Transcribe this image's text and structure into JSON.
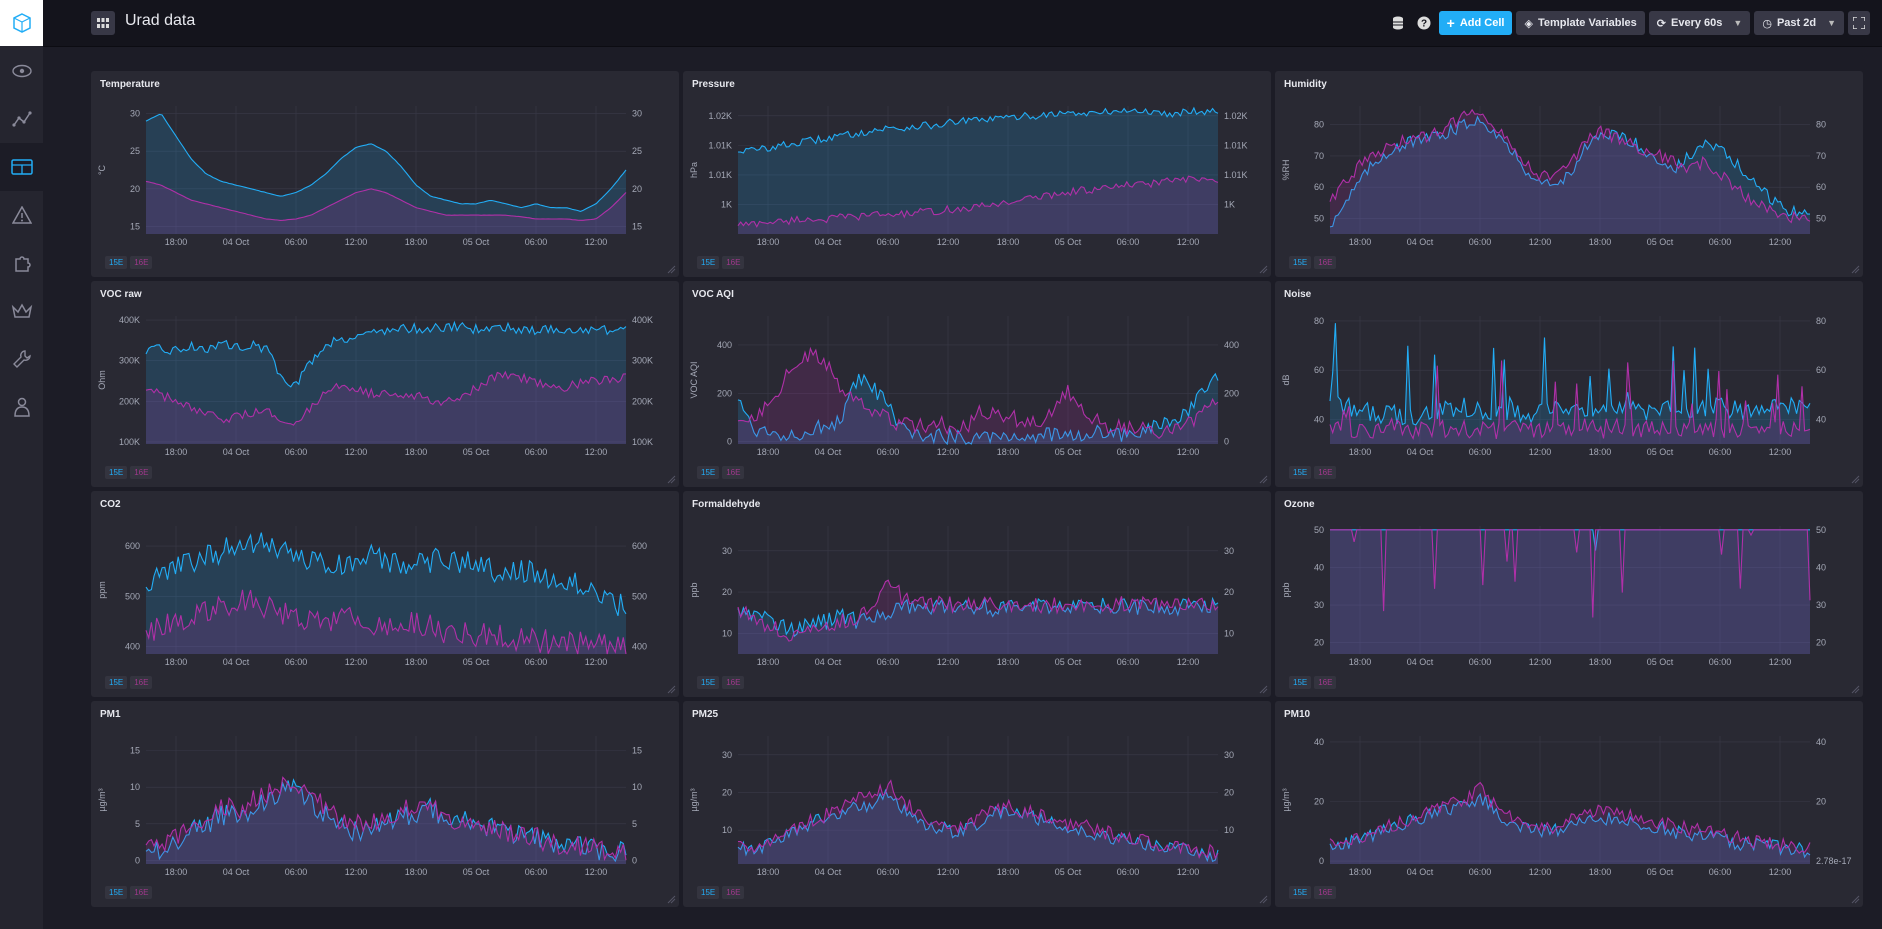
{
  "app": {
    "dashboard_title": "Urad data"
  },
  "sidebar": {
    "items": [
      {
        "icon": "logo-icon"
      },
      {
        "icon": "eye-icon"
      },
      {
        "icon": "graph-icon"
      },
      {
        "icon": "dashboard-icon"
      },
      {
        "icon": "alert-icon"
      },
      {
        "icon": "puzzle-icon"
      },
      {
        "icon": "crown-icon"
      },
      {
        "icon": "wrench-icon"
      },
      {
        "icon": "user-icon"
      }
    ]
  },
  "toolbar": {
    "add_cell": "Add Cell",
    "template_variables": "Template Variables",
    "refresh": "Every 60s",
    "time_range": "Past 2d"
  },
  "colors": {
    "series1": "#22adf6",
    "series2": "#b030a8",
    "grid": "#3a3a48",
    "panel": "#292933",
    "background": "#1c1c26"
  },
  "x_ticks": [
    "18:00",
    "04 Oct",
    "06:00",
    "12:00",
    "18:00",
    "05 Oct",
    "06:00",
    "12:00"
  ],
  "legend": {
    "s1": "15E",
    "s2": "16E"
  },
  "cells": [
    {
      "title": "Temperature",
      "ylabel": "°C",
      "ylim": [
        14,
        31
      ],
      "yticks": [
        "30",
        "25",
        "20",
        "15"
      ],
      "ytickvals": [
        30,
        25,
        20,
        15
      ],
      "rticks": [
        "30",
        "25",
        "20",
        "15"
      ],
      "kind": "smooth",
      "series1": [
        29,
        30,
        27,
        24,
        22,
        21,
        20.5,
        20,
        19.5,
        19,
        19.5,
        20.5,
        22,
        24,
        25.5,
        26,
        25,
        23,
        20.5,
        19,
        18.5,
        18,
        18,
        18.5,
        18,
        17.5,
        18,
        17.5,
        17.5,
        17,
        18,
        20,
        22.5
      ],
      "series2": [
        21,
        20.5,
        19.5,
        18.5,
        18,
        17.5,
        17,
        16.5,
        16,
        15.8,
        16,
        16.5,
        17.5,
        18.5,
        19.5,
        20,
        19.5,
        18.5,
        17.5,
        17,
        16.5,
        16.5,
        16.5,
        16.5,
        16.5,
        16.3,
        16,
        16,
        16,
        15.8,
        16,
        17.5,
        19.5
      ]
    },
    {
      "title": "Pressure",
      "ylabel": "hPa",
      "ylim": [
        997,
        1023
      ],
      "yticks": [
        "1.02K",
        "1.01K",
        "1.01K",
        "1K"
      ],
      "ytickvals": [
        1021,
        1015,
        1009,
        1003
      ],
      "rticks": [
        "1.02K",
        "1.01K",
        "1.01K",
        "1K"
      ],
      "kind": "smooth",
      "series1": [
        1014,
        1014,
        1014.5,
        1015,
        1015.5,
        1016,
        1016.5,
        1017,
        1017.5,
        1018,
        1018.5,
        1018.5,
        1019,
        1019,
        1019.5,
        1020,
        1020,
        1020.5,
        1020.5,
        1021,
        1021,
        1021.5,
        1021.5,
        1021.5,
        1021.5,
        1022,
        1022,
        1022,
        1021.5,
        1021.5,
        1022,
        1022,
        1022
      ],
      "series2": [
        999,
        999,
        999.5,
        999.5,
        1000,
        1000,
        1000,
        1000.5,
        1000.5,
        1001,
        1001,
        1001,
        1001.5,
        1001.5,
        1002,
        1002,
        1002.5,
        1003,
        1003.5,
        1004,
        1004.5,
        1005,
        1005.5,
        1006,
        1006,
        1006.5,
        1007,
        1007,
        1007.5,
        1008,
        1008,
        1008,
        1008
      ]
    },
    {
      "title": "Humidity",
      "ylabel": "%RH",
      "ylim": [
        45,
        86
      ],
      "yticks": [
        "80",
        "70",
        "60",
        "50"
      ],
      "ytickvals": [
        80,
        70,
        60,
        50
      ],
      "rticks": [
        "80",
        "70",
        "60",
        "50"
      ],
      "kind": "noisy",
      "amp": 2,
      "series1": [
        48,
        55,
        62,
        68,
        72,
        74,
        75,
        76,
        78,
        80,
        82,
        78,
        72,
        66,
        62,
        60,
        65,
        72,
        76,
        77,
        75,
        72,
        68,
        66,
        70,
        74,
        72,
        68,
        62,
        58,
        54,
        52,
        51
      ],
      "series2": [
        56,
        62,
        67,
        70,
        73,
        75,
        76,
        77,
        80,
        83,
        85,
        80,
        74,
        68,
        64,
        63,
        68,
        74,
        78,
        76,
        74,
        72,
        70,
        68,
        66,
        68,
        64,
        60,
        56,
        54,
        52,
        50,
        49
      ]
    },
    {
      "title": "VOC raw",
      "ylabel": "Ohm",
      "ylim": [
        95000,
        410000
      ],
      "yticks": [
        "400K",
        "300K",
        "200K",
        "100K"
      ],
      "ytickvals": [
        400000,
        300000,
        200000,
        100000
      ],
      "rticks": [
        "400K",
        "300K",
        "200K",
        "100K"
      ],
      "kind": "noisy",
      "amp": 12000,
      "series1": [
        320000,
        330000,
        325000,
        335000,
        330000,
        340000,
        335000,
        340000,
        330000,
        260000,
        240000,
        300000,
        340000,
        355000,
        360000,
        370000,
        375000,
        378000,
        380000,
        380000,
        382000,
        383000,
        378000,
        380000,
        382000,
        378000,
        375000,
        378000,
        376000,
        375000,
        374000,
        376000,
        372000
      ],
      "series2": [
        230000,
        215000,
        200000,
        180000,
        165000,
        158000,
        160000,
        170000,
        175000,
        160000,
        150000,
        180000,
        220000,
        240000,
        235000,
        220000,
        215000,
        210000,
        215000,
        205000,
        200000,
        215000,
        230000,
        255000,
        265000,
        260000,
        250000,
        240000,
        235000,
        245000,
        250000,
        255000,
        258000
      ]
    },
    {
      "title": "VOC AQI",
      "ylabel": "VOC AQI",
      "ylim": [
        -10,
        520
      ],
      "yticks": [
        "400",
        "200",
        "0"
      ],
      "ytickvals": [
        400,
        200,
        0
      ],
      "rticks": [
        "400",
        "200",
        "0"
      ],
      "kind": "noisy",
      "amp": 35,
      "series1": [
        180,
        60,
        40,
        30,
        40,
        50,
        60,
        100,
        260,
        220,
        150,
        40,
        30,
        25,
        20,
        20,
        25,
        30,
        25,
        20,
        25,
        30,
        20,
        30,
        40,
        30,
        25,
        50,
        60,
        80,
        120,
        200,
        260
      ],
      "series2": [
        90,
        100,
        160,
        250,
        330,
        360,
        300,
        220,
        160,
        120,
        90,
        70,
        60,
        80,
        60,
        50,
        120,
        130,
        100,
        90,
        80,
        140,
        200,
        120,
        80,
        60,
        60,
        50,
        40,
        50,
        70,
        140,
        180
      ]
    },
    {
      "title": "Noise",
      "ylabel": "dB",
      "ylim": [
        30,
        82
      ],
      "yticks": [
        "80",
        "60",
        "40"
      ],
      "ytickvals": [
        80,
        60,
        40
      ],
      "rticks": [
        "80",
        "60",
        "40"
      ],
      "kind": "spiky",
      "amp": 8,
      "series1": [
        48,
        45,
        44,
        42,
        43,
        41,
        42,
        43,
        44,
        45,
        44,
        43,
        44,
        42,
        43,
        44,
        45,
        43,
        44,
        45,
        44,
        43,
        45,
        44,
        43,
        44,
        45,
        44,
        43,
        45,
        44,
        45,
        44
      ],
      "series2": [
        38,
        37,
        36,
        36,
        37,
        36,
        36,
        37,
        36,
        36,
        37,
        36,
        37,
        36,
        36,
        37,
        36,
        37,
        36,
        37,
        36,
        36,
        37,
        36,
        37,
        36,
        36,
        37,
        36,
        37,
        36,
        36,
        37
      ]
    },
    {
      "title": "CO2",
      "ylabel": "ppm",
      "ylim": [
        385,
        640
      ],
      "yticks": [
        "600",
        "500",
        "400"
      ],
      "ytickvals": [
        600,
        500,
        400
      ],
      "rticks": [
        "600",
        "500",
        "400"
      ],
      "kind": "noisy",
      "amp": 25,
      "series1": [
        520,
        540,
        560,
        570,
        580,
        590,
        600,
        610,
        600,
        590,
        580,
        570,
        560,
        560,
        570,
        580,
        570,
        560,
        560,
        570,
        580,
        570,
        560,
        550,
        560,
        550,
        545,
        540,
        530,
        520,
        500,
        490,
        480
      ],
      "series2": [
        430,
        440,
        450,
        460,
        470,
        480,
        490,
        500,
        480,
        470,
        460,
        450,
        450,
        455,
        460,
        450,
        440,
        440,
        445,
        440,
        430,
        430,
        425,
        420,
        420,
        415,
        410,
        410,
        410,
        405,
        405,
        400,
        400
      ]
    },
    {
      "title": "Formaldehyde",
      "ylabel": "ppb",
      "ylim": [
        5,
        36
      ],
      "yticks": [
        "30",
        "20",
        "10"
      ],
      "ytickvals": [
        30,
        20,
        10
      ],
      "rticks": [
        "30",
        "20",
        "10"
      ],
      "kind": "noisy",
      "amp": 2,
      "series1": [
        16,
        15,
        14,
        12,
        11,
        12,
        13,
        14,
        13,
        14,
        15,
        16,
        17,
        16,
        17,
        16,
        17,
        16,
        17,
        16,
        17,
        16,
        17,
        16,
        17,
        16,
        17,
        16,
        17,
        16,
        17,
        16,
        17
      ],
      "series2": [
        16,
        14,
        12,
        10,
        10,
        11,
        12,
        13,
        14,
        15,
        24,
        18,
        17,
        17,
        17,
        17,
        17,
        17,
        17,
        17,
        17,
        17,
        17,
        17,
        17,
        17,
        17,
        17,
        17,
        17,
        17,
        17,
        17
      ]
    },
    {
      "title": "Ozone",
      "ylabel": "ppb",
      "ylim": [
        17,
        51
      ],
      "yticks": [
        "50",
        "40",
        "30",
        "20"
      ],
      "ytickvals": [
        50,
        40,
        30,
        20
      ],
      "rticks": [
        "50",
        "40",
        "30",
        "20"
      ],
      "kind": "flat",
      "series1": [
        50,
        50,
        50,
        50,
        50,
        50,
        50,
        50,
        50,
        50,
        50,
        50,
        50,
        50,
        50,
        50,
        50,
        50,
        50,
        50,
        50,
        50,
        50,
        50,
        50,
        50,
        50,
        50,
        50,
        50,
        50,
        50,
        50
      ],
      "series2": [
        50,
        50,
        50,
        50,
        50,
        50,
        50,
        50,
        50,
        50,
        50,
        50,
        50,
        50,
        50,
        50,
        50,
        50,
        50,
        50,
        50,
        50,
        50,
        50,
        50,
        50,
        50,
        50,
        50,
        50,
        50,
        50,
        50
      ]
    },
    {
      "title": "PM1",
      "ylabel": "µg/m³",
      "ylim": [
        -0.5,
        17
      ],
      "yticks": [
        "15",
        "10",
        "5",
        "0"
      ],
      "ytickvals": [
        15,
        10,
        5,
        0
      ],
      "rticks": [
        "15",
        "10",
        "5",
        "0"
      ],
      "kind": "noisy",
      "amp": 1.5,
      "series1": [
        1,
        1.5,
        2.5,
        4,
        5,
        6,
        6.5,
        7,
        8,
        9,
        10,
        8,
        6,
        5,
        4,
        4,
        5,
        6,
        6.5,
        7,
        6,
        5.5,
        5,
        4.5,
        4,
        3.5,
        3,
        2.5,
        2,
        1.8,
        1.5,
        1.2,
        1
      ],
      "series2": [
        1.5,
        2,
        3,
        5,
        6,
        7,
        7,
        8,
        9,
        10,
        11,
        9,
        7,
        5,
        5,
        5,
        6,
        7,
        7.5,
        7,
        6,
        5.5,
        5,
        4.5,
        4,
        3.5,
        3,
        2.5,
        2,
        2,
        1.8,
        1.5,
        1.2
      ]
    },
    {
      "title": "PM25",
      "ylabel": "µg/m³",
      "ylim": [
        1,
        35
      ],
      "yticks": [
        "30",
        "20",
        "10"
      ],
      "ytickvals": [
        30,
        20,
        10
      ],
      "rticks": [
        "30",
        "20",
        "10"
      ],
      "kind": "noisy",
      "amp": 2,
      "series1": [
        5,
        5.5,
        6,
        8,
        10,
        12,
        13,
        15,
        16,
        17,
        20,
        16,
        13,
        11,
        10,
        10,
        12,
        14,
        15,
        14,
        13,
        12,
        11,
        10,
        9,
        8,
        7,
        6,
        5.5,
        5,
        4.5,
        4,
        3.5
      ],
      "series2": [
        6,
        6,
        7,
        9,
        11,
        13,
        14,
        16,
        18,
        19,
        22,
        18,
        14,
        12,
        11,
        11,
        13,
        16,
        16,
        15,
        14,
        13,
        12,
        11,
        10,
        9,
        8,
        7,
        6,
        5.5,
        5,
        4.5,
        4
      ]
    },
    {
      "title": "PM10",
      "ylabel": "µg/m³",
      "ylim": [
        -1,
        42
      ],
      "yticks": [
        "40",
        "20",
        "0"
      ],
      "ytickvals": [
        40,
        20,
        0
      ],
      "rticks": [
        "40",
        "20",
        "2.78e-17"
      ],
      "kind": "noisy",
      "amp": 2.5,
      "series1": [
        5,
        6,
        7,
        9,
        11,
        13,
        14,
        16,
        17,
        18,
        21,
        17,
        13,
        11,
        10,
        10,
        12,
        14,
        15,
        14,
        13,
        12,
        11,
        10,
        9,
        8,
        7,
        6,
        5.5,
        5,
        4.5,
        4,
        3.5
      ],
      "series2": [
        6,
        7,
        8,
        10,
        12,
        14,
        15,
        17,
        19,
        20,
        24,
        19,
        15,
        12,
        11,
        11,
        14,
        17,
        17,
        16,
        15,
        14,
        13,
        12,
        11,
        10,
        9,
        8,
        7,
        6,
        5.5,
        5,
        4.5
      ]
    }
  ]
}
